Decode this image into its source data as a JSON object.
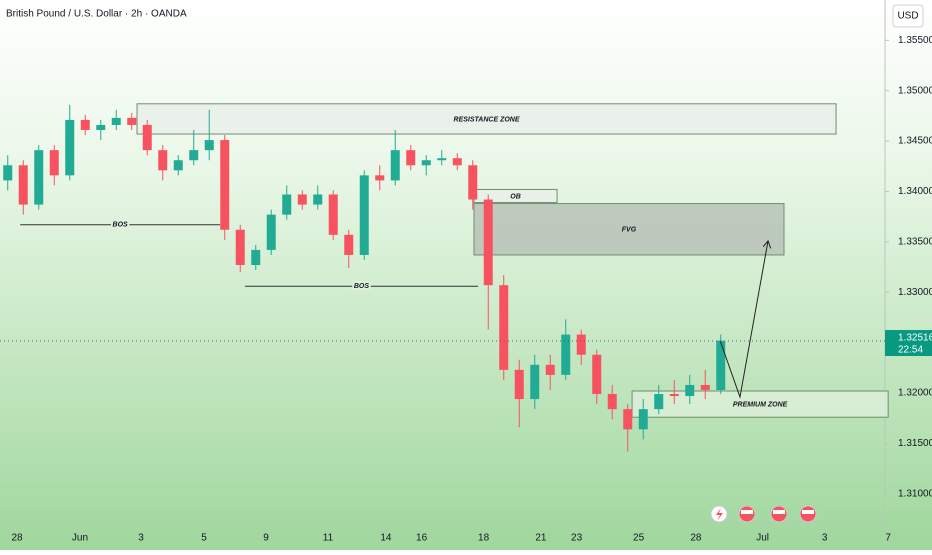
{
  "chart_data": {
    "type": "candlestick",
    "title": "British Pound / U.S. Dollar · 2h · OANDA",
    "currency": "USD",
    "up_color": "#22ab94",
    "down_color": "#f7525f",
    "xlim": [
      0,
      30
    ],
    "ylim": [
      1.3074,
      1.359
    ],
    "xticks": [
      {
        "value": 0.55,
        "label": "28"
      },
      {
        "value": 2.58,
        "label": "Jun"
      },
      {
        "value": 4.55,
        "label": "3"
      },
      {
        "value": 6.58,
        "label": "5"
      },
      {
        "value": 8.58,
        "label": "9"
      },
      {
        "value": 10.58,
        "label": "11"
      },
      {
        "value": 12.45,
        "label": "14"
      },
      {
        "value": 13.6,
        "label": "16"
      },
      {
        "value": 15.6,
        "label": "18"
      },
      {
        "value": 17.45,
        "label": "21"
      },
      {
        "value": 18.6,
        "label": "23"
      },
      {
        "value": 20.6,
        "label": "25"
      },
      {
        "value": 22.45,
        "label": "28"
      },
      {
        "value": 24.6,
        "label": "Jul"
      },
      {
        "value": 26.6,
        "label": "3"
      },
      {
        "value": 28.65,
        "label": "7"
      }
    ],
    "yticks": [
      {
        "value": 1.31,
        "label": "1.31000"
      },
      {
        "value": 1.315,
        "label": "1.31500"
      },
      {
        "value": 1.32,
        "label": "1.32000"
      },
      {
        "value": 1.33,
        "label": "1.33000"
      },
      {
        "value": 1.335,
        "label": "1.33500"
      },
      {
        "value": 1.34,
        "label": "1.34000"
      },
      {
        "value": 1.345,
        "label": "1.34500"
      },
      {
        "value": 1.35,
        "label": "1.35000"
      },
      {
        "value": 1.355,
        "label": "1.35500"
      }
    ],
    "current_price": 1.32516,
    "countdown": "22:54",
    "candles": {
      "x": [
        0.25,
        0.75,
        1.25,
        1.75,
        2.25,
        2.75,
        3.25,
        3.75,
        4.25,
        4.75,
        5.25,
        5.75,
        6.25,
        6.75,
        7.25,
        7.75,
        8.25,
        8.75,
        9.25,
        9.75,
        10.25,
        10.75,
        11.25,
        11.75,
        12.25,
        12.75,
        13.25,
        13.75,
        14.25,
        14.75,
        15.25,
        15.75,
        16.25,
        16.75,
        17.25,
        17.75,
        18.25,
        18.75,
        19.25,
        19.75,
        20.25,
        20.75,
        21.25,
        21.75,
        22.25,
        22.75,
        23.25
      ],
      "open": [
        1.3411,
        1.3426,
        1.3387,
        1.3441,
        1.3416,
        1.3471,
        1.3461,
        1.3466,
        1.3473,
        1.3466,
        1.3441,
        1.3421,
        1.3431,
        1.3441,
        1.3451,
        1.3362,
        1.3327,
        1.3342,
        1.3377,
        1.3397,
        1.3387,
        1.3397,
        1.3357,
        1.3337,
        1.3416,
        1.3411,
        1.3441,
        1.3426,
        1.3431,
        1.3433,
        1.3426,
        1.3392,
        1.3307,
        1.3223,
        1.3194,
        1.3228,
        1.3218,
        1.3258,
        1.3238,
        1.3199,
        1.3184,
        1.3164,
        1.3184,
        1.3199,
        1.3197,
        1.3208,
        1.3203
      ],
      "high": [
        1.3436,
        1.3431,
        1.3446,
        1.3446,
        1.3486,
        1.3476,
        1.3471,
        1.3481,
        1.3478,
        1.3471,
        1.3446,
        1.3436,
        1.3461,
        1.3481,
        1.3456,
        1.3367,
        1.3347,
        1.3382,
        1.3406,
        1.3401,
        1.3406,
        1.3401,
        1.3362,
        1.3421,
        1.3426,
        1.3461,
        1.3446,
        1.3436,
        1.3441,
        1.3438,
        1.3431,
        1.3397,
        1.3317,
        1.3233,
        1.3238,
        1.3238,
        1.3273,
        1.3263,
        1.3243,
        1.3208,
        1.3189,
        1.3194,
        1.3208,
        1.3213,
        1.3218,
        1.3223,
        1.3258
      ],
      "low": [
        1.3401,
        1.3377,
        1.3382,
        1.3406,
        1.3411,
        1.3456,
        1.3451,
        1.3461,
        1.3461,
        1.3436,
        1.3411,
        1.3416,
        1.3426,
        1.3431,
        1.3352,
        1.332,
        1.3322,
        1.3337,
        1.3372,
        1.3382,
        1.3382,
        1.3352,
        1.3324,
        1.3332,
        1.3401,
        1.3406,
        1.3421,
        1.3416,
        1.3426,
        1.3421,
        1.3382,
        1.3263,
        1.3213,
        1.3166,
        1.3184,
        1.3203,
        1.3213,
        1.3228,
        1.3189,
        1.3174,
        1.3142,
        1.3154,
        1.3179,
        1.3189,
        1.3189,
        1.3194,
        1.3199
      ],
      "close": [
        1.3426,
        1.3387,
        1.3441,
        1.3416,
        1.3471,
        1.3461,
        1.3466,
        1.3473,
        1.3466,
        1.3441,
        1.3421,
        1.3431,
        1.3441,
        1.3451,
        1.3362,
        1.3327,
        1.3342,
        1.3377,
        1.3397,
        1.3387,
        1.3397,
        1.3357,
        1.3337,
        1.3416,
        1.3411,
        1.3441,
        1.3426,
        1.3431,
        1.3433,
        1.3426,
        1.3392,
        1.3307,
        1.3223,
        1.3194,
        1.3228,
        1.3218,
        1.3258,
        1.3238,
        1.3199,
        1.3184,
        1.3164,
        1.3184,
        1.3199,
        1.3197,
        1.3208,
        1.3203,
        1.3252
      ]
    },
    "zones": [
      {
        "label": "RESISTANCE ZONE",
        "x": [
          4.42,
          26.97
        ],
        "y": [
          1.3457,
          1.3487
        ],
        "color": "#e9eee9"
      },
      {
        "label": "OB",
        "x": [
          15.29,
          17.97
        ],
        "y": [
          1.3389,
          1.3402
        ],
        "color": "#e9eee9"
      },
      {
        "label": "FVG",
        "x": [
          15.29,
          25.29
        ],
        "y": [
          1.3337,
          1.3388
        ],
        "color": "#b9c2b9"
      },
      {
        "label": "PREMIUM ZONE",
        "x": [
          20.39,
          28.65
        ],
        "y": [
          1.3176,
          1.3202
        ],
        "color": "#dcefd8"
      }
    ],
    "bos_lines": [
      {
        "label": "BOS",
        "x": [
          0.65,
          7.1
        ],
        "y": 1.3367
      },
      {
        "label": "BOS",
        "x": [
          7.9,
          15.42
        ],
        "y": 1.3306
      }
    ],
    "projection": {
      "x": [
        23.23,
        23.87,
        24.77
      ],
      "y": [
        1.3252,
        1.3196,
        1.335
      ]
    }
  }
}
